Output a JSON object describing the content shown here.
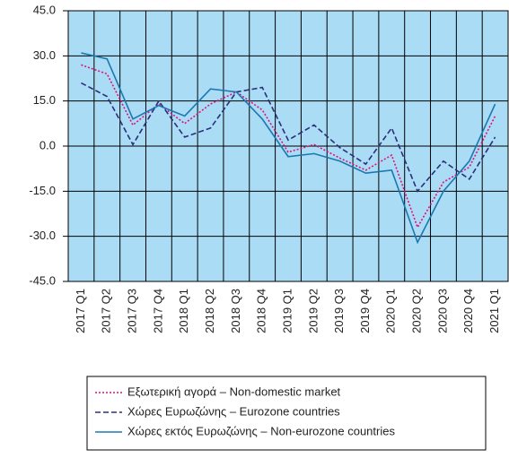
{
  "chart_data": {
    "type": "line",
    "categories": [
      "2017 Q1",
      "2017 Q2",
      "2017 Q3",
      "2017 Q4",
      "2018 Q1",
      "2018 Q2",
      "2018 Q3",
      "2018 Q4",
      "2019 Q1",
      "2019 Q2",
      "2019 Q3",
      "2019 Q4",
      "2020 Q1",
      "2020 Q2",
      "2020 Q3",
      "2020 Q4",
      "2021 Q1"
    ],
    "series": [
      {
        "name": "Εξωτερική αγορά – Non-domestic market",
        "color": "#e0107f",
        "dash": "2,2",
        "values": [
          27,
          24,
          7,
          14,
          7.5,
          14,
          18,
          12,
          -2,
          0.5,
          -4,
          -8,
          -3,
          -27,
          -12,
          -7,
          10
        ]
      },
      {
        "name": "Χώρες Ευρωζώνης – Eurozone countries",
        "color": "#2b2f7a",
        "dash": "6,3",
        "values": [
          21,
          16.5,
          0.5,
          15,
          3,
          6,
          18,
          19.5,
          2,
          7,
          -0.5,
          -6,
          6,
          -15,
          -5,
          -11,
          3
        ]
      },
      {
        "name": "Χώρες εκτός Ευρωζώνης – Non-eurozone countries",
        "color": "#1a78b0",
        "dash": "",
        "values": [
          31,
          29,
          9,
          13.5,
          10,
          19,
          18,
          9,
          -3.5,
          -2.5,
          -5,
          -9,
          -8,
          -32,
          -15,
          -5,
          14
        ]
      }
    ],
    "ylim": [
      -45,
      45
    ],
    "yticks": [
      {
        "value": -45,
        "label": "-45.0"
      },
      {
        "value": -30,
        "label": "-30.0"
      },
      {
        "value": -15,
        "label": "-15.0"
      },
      {
        "value": 0,
        "label": "0.0"
      },
      {
        "value": 15,
        "label": "15.0"
      },
      {
        "value": 30,
        "label": "30.0"
      },
      {
        "value": 45,
        "label": "45.0"
      }
    ],
    "grid": true
  }
}
